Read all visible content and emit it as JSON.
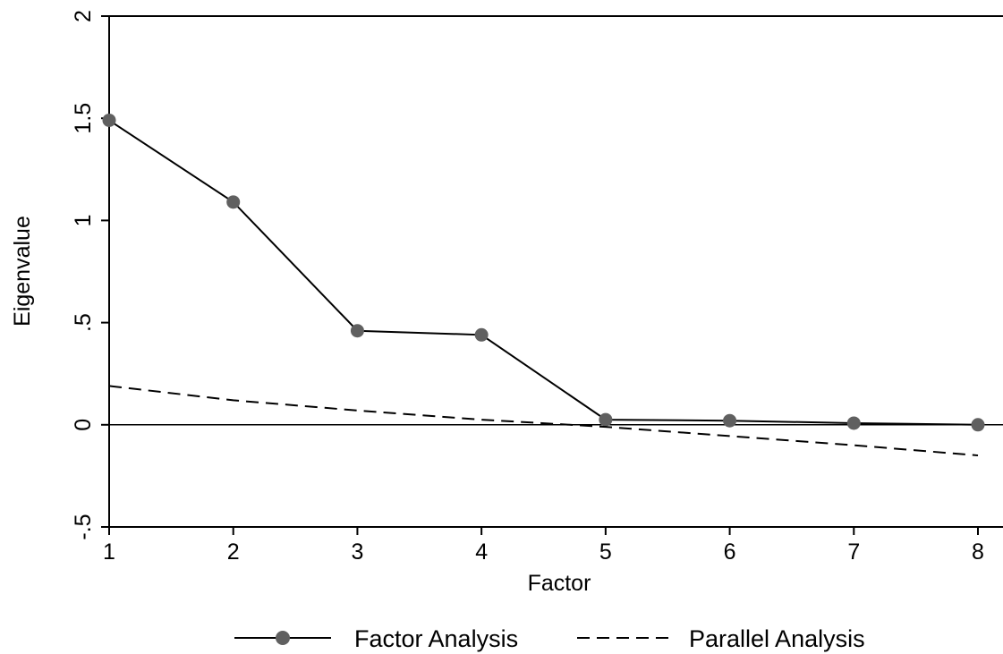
{
  "chart_data": {
    "type": "line",
    "xlabel": "Factor",
    "ylabel": "Eigenvalue",
    "xlim": [
      1,
      8
    ],
    "ylim": [
      -0.5,
      2
    ],
    "x": [
      1,
      2,
      3,
      4,
      5,
      6,
      7,
      8
    ],
    "x_ticks": [
      "1",
      "2",
      "3",
      "4",
      "5",
      "6",
      "7",
      "8"
    ],
    "y_ticks": [
      {
        "value": -0.5,
        "label": "-.5"
      },
      {
        "value": 0,
        "label": "0"
      },
      {
        "value": 0.5,
        "label": ".5"
      },
      {
        "value": 1,
        "label": "1"
      },
      {
        "value": 1.5,
        "label": "1.5"
      },
      {
        "value": 2,
        "label": "2"
      }
    ],
    "reference_line_y": 0,
    "grid": false,
    "legend_position": "bottom",
    "series": [
      {
        "name": "Factor Analysis",
        "style": "solid-with-markers",
        "color": "#000000",
        "marker_color": "#606060",
        "values": [
          1.49,
          1.09,
          0.46,
          0.44,
          0.025,
          0.02,
          0.008,
          0.0
        ]
      },
      {
        "name": "Parallel Analysis",
        "style": "dashed",
        "color": "#000000",
        "values": [
          0.19,
          0.12,
          0.07,
          0.025,
          -0.01,
          -0.055,
          -0.1,
          -0.15
        ]
      }
    ]
  }
}
